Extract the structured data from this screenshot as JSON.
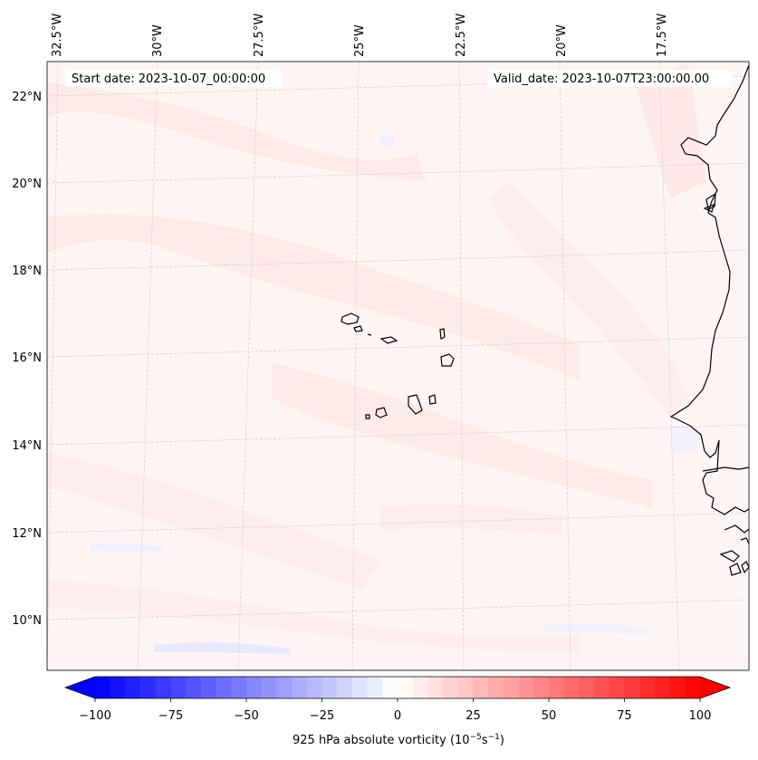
{
  "header": {
    "start_date": "Start date: 2023-10-07_00:00:00",
    "valid_date": "Valid_date: 2023-10-07T23:00:00.00"
  },
  "map": {
    "region": "Cabo Verde and West African coast",
    "lon_labels": [
      "32.5°W",
      "30°W",
      "27.5°W",
      "25°W",
      "22.5°W",
      "20°W",
      "17.5°W"
    ],
    "lat_labels": [
      "22°N",
      "20°N",
      "18°N",
      "16°N",
      "14°N",
      "12°N",
      "10°N"
    ],
    "ocean_color": "#fff5f5",
    "land_outline_color": "#000000",
    "gridline_color": "#cccccc"
  },
  "colorbar": {
    "min": -100,
    "max": 100,
    "step": 5,
    "ticks": [
      "−100",
      "−75",
      "−50",
      "−25",
      "0",
      "25",
      "50",
      "75",
      "100"
    ],
    "colors": {
      "low": "#0000ff",
      "mid": "#ffffff",
      "high": "#ff0000"
    },
    "extend": "both",
    "label_prefix": "925 hPa absolute vorticity (10",
    "label_exp1": "−5",
    "label_mid": "s",
    "label_exp2": "−1",
    "label_suffix": ")"
  }
}
